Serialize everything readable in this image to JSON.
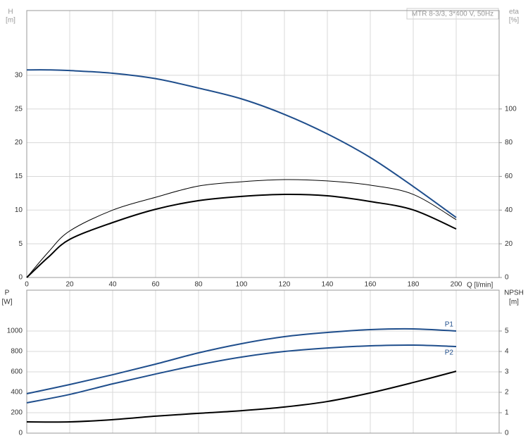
{
  "chart_data": [
    {
      "type": "line",
      "title": "MTR 8-3/3, 3*400 V, 50Hz",
      "x_label": "Q [l/min]",
      "y_label": "H",
      "y_unit": "[m]",
      "y2_label": "eta",
      "y2_unit": "[%]",
      "x": [
        0,
        10,
        20,
        40,
        60,
        80,
        100,
        120,
        140,
        160,
        180,
        200
      ],
      "xlim": [
        0,
        220
      ],
      "xticks": [
        0,
        20,
        40,
        60,
        80,
        100,
        120,
        140,
        160,
        180,
        200
      ],
      "ylim": [
        0,
        39.6
      ],
      "yticks": [
        0,
        5,
        10,
        15,
        20,
        25,
        30
      ],
      "y2lim": [
        0,
        158.4
      ],
      "y2ticks": [
        0,
        20,
        40,
        60,
        80,
        100
      ],
      "grid": true,
      "series": [
        {
          "color": "#1f4e8c",
          "axis": "y",
          "values": [
            30.8,
            30.8,
            30.7,
            30.3,
            29.5,
            28.1,
            26.5,
            24.2,
            21.3,
            17.8,
            13.5,
            8.9
          ]
        },
        {
          "color": "#000000",
          "axis": "y2",
          "values": [
            0,
            15,
            27.6,
            40,
            47.6,
            54.3,
            56.8,
            58.1,
            57.3,
            54.8,
            49.3,
            34.3
          ]
        },
        {
          "color": "#000000",
          "axis": "y2",
          "values": [
            0,
            12,
            22.6,
            32.6,
            40.5,
            45.6,
            48.1,
            49.3,
            48.5,
            45.1,
            40.1,
            28.8
          ]
        }
      ]
    },
    {
      "type": "line",
      "y_label": "P",
      "y_unit": "[W]",
      "y2_label": "NPSH",
      "y2_unit": "[m]",
      "x": [
        0,
        20,
        40,
        60,
        80,
        100,
        120,
        140,
        160,
        180,
        200
      ],
      "xlim": [
        0,
        220
      ],
      "ylim": [
        0,
        1400
      ],
      "yticks": [
        0,
        200,
        400,
        600,
        800,
        1000
      ],
      "y2lim": [
        0,
        7
      ],
      "y2ticks": [
        0,
        1,
        2,
        3,
        4,
        5
      ],
      "grid": true,
      "series": [
        {
          "name": "P1",
          "color": "#1f4e8c",
          "axis": "y",
          "values": [
            386,
            476,
            572,
            676,
            786,
            876,
            945,
            986,
            1014,
            1021,
            1000
          ]
        },
        {
          "name": "P2",
          "color": "#1f4e8c",
          "axis": "y",
          "values": [
            297,
            379,
            483,
            579,
            669,
            745,
            800,
            834,
            855,
            862,
            848
          ]
        },
        {
          "color": "#000000",
          "axis": "y2",
          "values": [
            0.55,
            0.55,
            0.66,
            0.83,
            0.97,
            1.1,
            1.28,
            1.55,
            1.97,
            2.48,
            3.03
          ]
        }
      ]
    }
  ]
}
